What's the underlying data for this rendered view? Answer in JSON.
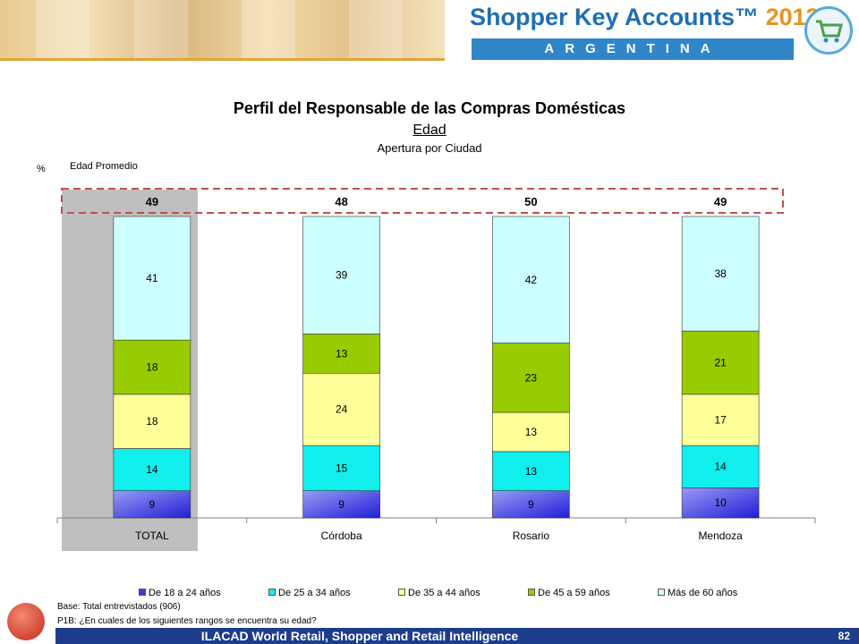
{
  "header": {
    "brand_title": "Shopper Key Accounts™",
    "brand_year": "2013",
    "country": "ARGENTINA",
    "logo_icon": "shopping-cart-icon"
  },
  "chart_data": {
    "type": "bar",
    "stacked": true,
    "title": "Perfil del Responsable de las Compras Domésticas",
    "subtitle": "Edad",
    "subtitle2": "Apertura por Ciudad",
    "y_unit_label": "%",
    "average_label": "Edad Promedio",
    "categories": [
      "TOTAL",
      "Córdoba",
      "Rosario",
      "Mendoza"
    ],
    "highlighted_category": "TOTAL",
    "averages": [
      49,
      48,
      50,
      49
    ],
    "ylim": [
      0,
      100
    ],
    "grid": false,
    "legend_position": "bottom",
    "series": [
      {
        "name": "De 18 a 24 años",
        "color": "#3a3adf",
        "values": [
          9,
          9,
          9,
          10
        ]
      },
      {
        "name": "De 25 a 34 años",
        "color": "#11eeee",
        "values": [
          14,
          15,
          13,
          14
        ]
      },
      {
        "name": "De 35 a 44 años",
        "color": "#ffff99",
        "values": [
          18,
          24,
          13,
          17
        ]
      },
      {
        "name": "De 45 a 59 años",
        "color": "#99cc00",
        "values": [
          18,
          13,
          23,
          21
        ]
      },
      {
        "name": "Más de 60 años",
        "color": "#ccffff",
        "values": [
          41,
          39,
          42,
          38
        ]
      }
    ]
  },
  "footnotes": {
    "base": "Base: Total entrevistados (906)",
    "question": "P1B: ¿En cuales de los siguientes rangos se encuentra su edad?"
  },
  "footer": {
    "text": "ILACAD World Retail, Shopper and Retail Intelligence",
    "page_number": "82",
    "logo_icon": "ilacad-logo-icon"
  }
}
